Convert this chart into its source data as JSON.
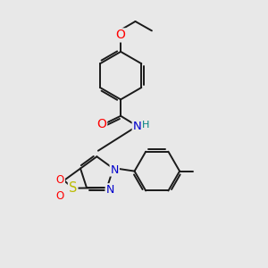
{
  "bg_color": "#e8e8e8",
  "bond_color": "#1a1a1a",
  "lw": 1.4,
  "dbo": 0.08,
  "fs": 8.5,
  "atom_colors": {
    "O": "#ff0000",
    "N": "#0000cc",
    "S": "#bbbb00",
    "H": "#008080",
    "C": "#1a1a1a"
  }
}
